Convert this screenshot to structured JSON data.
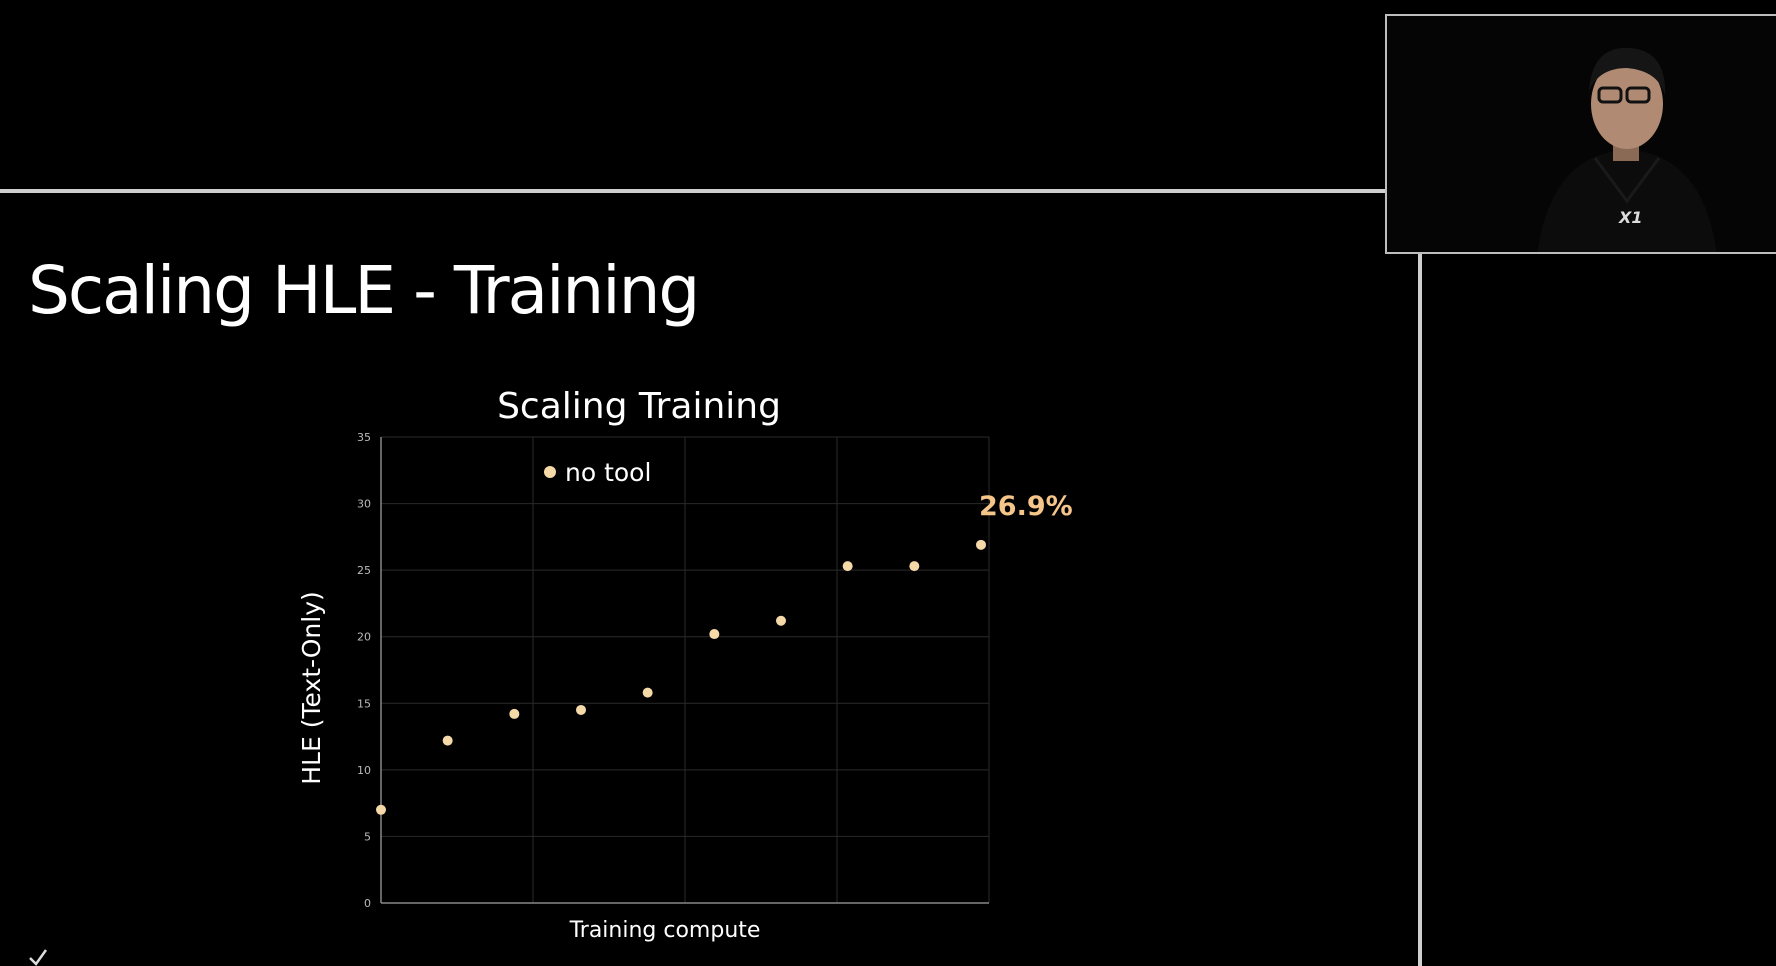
{
  "slide": {
    "title": "Scaling HLE - Training"
  },
  "colors": {
    "point": "#f6d9a8",
    "callout": "#f5c58a",
    "background": "#000000"
  },
  "webcam": {
    "logo_text": "X1"
  },
  "chart_data": {
    "type": "scatter",
    "title": "Scaling Training",
    "xlabel": "Training compute",
    "ylabel": "HLE (Text-Only)",
    "ylim": [
      0,
      35
    ],
    "yticks": [
      "0",
      "5",
      "10",
      "15",
      "20",
      "25",
      "30",
      "35"
    ],
    "grid": true,
    "legend": "top-left",
    "series": [
      {
        "name": "no tool",
        "x": [
          1,
          2,
          3,
          4,
          5,
          6,
          7,
          8,
          9,
          10
        ],
        "y": [
          7.0,
          12.2,
          14.2,
          14.5,
          15.8,
          20.2,
          21.2,
          25.3,
          25.3,
          26.9
        ]
      }
    ],
    "annotation": {
      "text": "26.9%",
      "point_index": 9
    }
  }
}
